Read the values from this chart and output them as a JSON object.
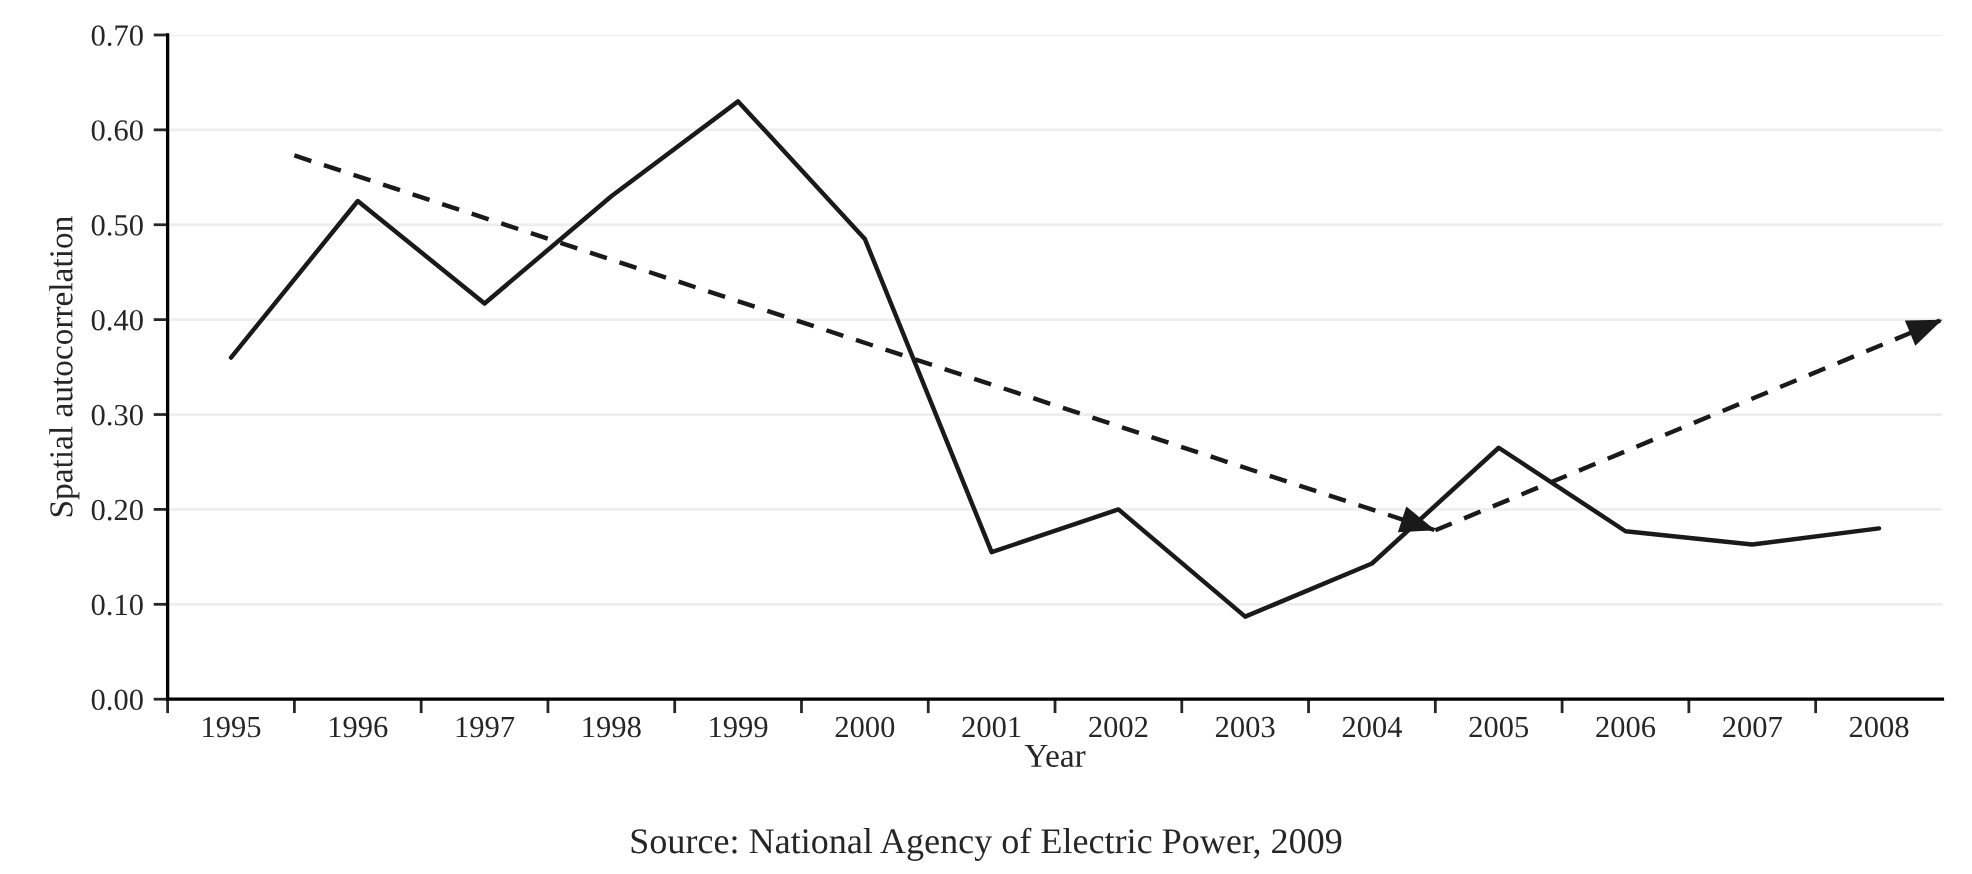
{
  "chart_data": {
    "type": "line",
    "xlabel": "Year",
    "ylabel": "Spatial autocorrelation",
    "annotations": [
      "Source: National Agency of Electric Power, 2009"
    ],
    "x": [
      1995,
      1996,
      1997,
      1998,
      1999,
      2000,
      2001,
      2002,
      2003,
      2004,
      2005,
      2006,
      2007,
      2008
    ],
    "series": [
      {
        "color": "#1a1a1a",
        "line_style": "solid",
        "values": [
          0.36,
          0.525,
          0.417,
          0.53,
          0.63,
          0.485,
          0.155,
          0.2,
          0.087,
          0.143,
          0.265,
          0.177,
          0.163,
          0.18
        ]
      },
      {
        "color": "#1a1a1a",
        "line_style": "dashed",
        "x": [
          1995.5,
          2004.5
        ],
        "values": [
          0.573,
          0.178
        ]
      },
      {
        "color": "#1a1a1a",
        "line_style": "dashed",
        "x": [
          2004.5,
          2008.5
        ],
        "values": [
          0.178,
          0.4
        ]
      }
    ],
    "xlim": [
      1994.5,
      2008.5
    ],
    "xticks": [
      1995,
      1996,
      1997,
      1998,
      1999,
      2000,
      2001,
      2002,
      2003,
      2004,
      2005,
      2006,
      2007,
      2008
    ],
    "ylim": [
      0,
      0.7
    ],
    "yticks": [
      {
        "value": 0,
        "label": "0.00"
      },
      {
        "value": 0.1,
        "label": "0.10"
      },
      {
        "value": 0.2,
        "label": "0.20"
      },
      {
        "value": 0.3,
        "label": "0.30"
      },
      {
        "value": 0.4,
        "label": "0.40"
      },
      {
        "value": 0.5,
        "label": "0.50"
      },
      {
        "value": 0.6,
        "label": "0.60"
      },
      {
        "value": 0.7,
        "label": "0.70"
      }
    ],
    "grid": "y",
    "legend": false,
    "marker": "none"
  }
}
